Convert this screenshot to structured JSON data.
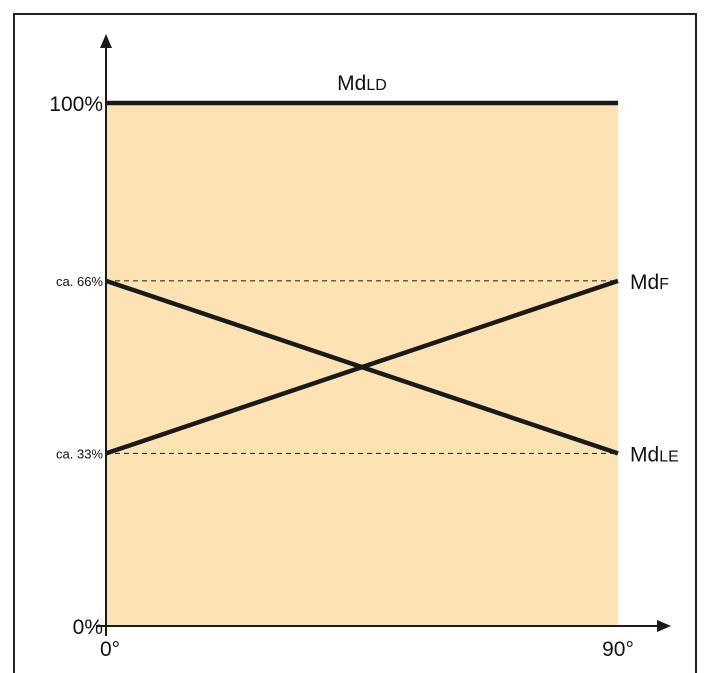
{
  "chart_data": {
    "type": "line",
    "title": "",
    "xlabel": "",
    "ylabel": "",
    "xlim": [
      0,
      90
    ],
    "ylim": [
      0,
      100
    ],
    "x_ticks": [
      {
        "value": 0,
        "label": "0°"
      },
      {
        "value": 90,
        "label": "90°"
      }
    ],
    "y_ticks": [
      {
        "value": 0,
        "label": "0%",
        "size": "large"
      },
      {
        "value": 33,
        "label": "ca. 33%",
        "size": "small"
      },
      {
        "value": 66,
        "label": "ca. 66%",
        "size": "small"
      },
      {
        "value": 100,
        "label": "100%",
        "size": "large"
      }
    ],
    "reference_lines": [
      {
        "y": 66,
        "style": "dashed"
      },
      {
        "y": 33,
        "style": "dashed"
      }
    ],
    "series": [
      {
        "name": "MdLD",
        "base": "Md",
        "sub": "LD",
        "x": [
          0,
          90
        ],
        "y": [
          100,
          100
        ],
        "label_position": "top-center"
      },
      {
        "name": "MdF",
        "base": "Md",
        "sub": "F",
        "x": [
          0,
          90
        ],
        "y": [
          33,
          66
        ],
        "label_position": "right-end"
      },
      {
        "name": "MdLE",
        "base": "Md",
        "sub": "LE",
        "x": [
          0,
          90
        ],
        "y": [
          66,
          33
        ],
        "label_position": "right-end"
      }
    ],
    "fill_color": "#fde3b4",
    "line_color": "#1a1a1a",
    "grid": false,
    "legend": "none",
    "frame": true
  }
}
